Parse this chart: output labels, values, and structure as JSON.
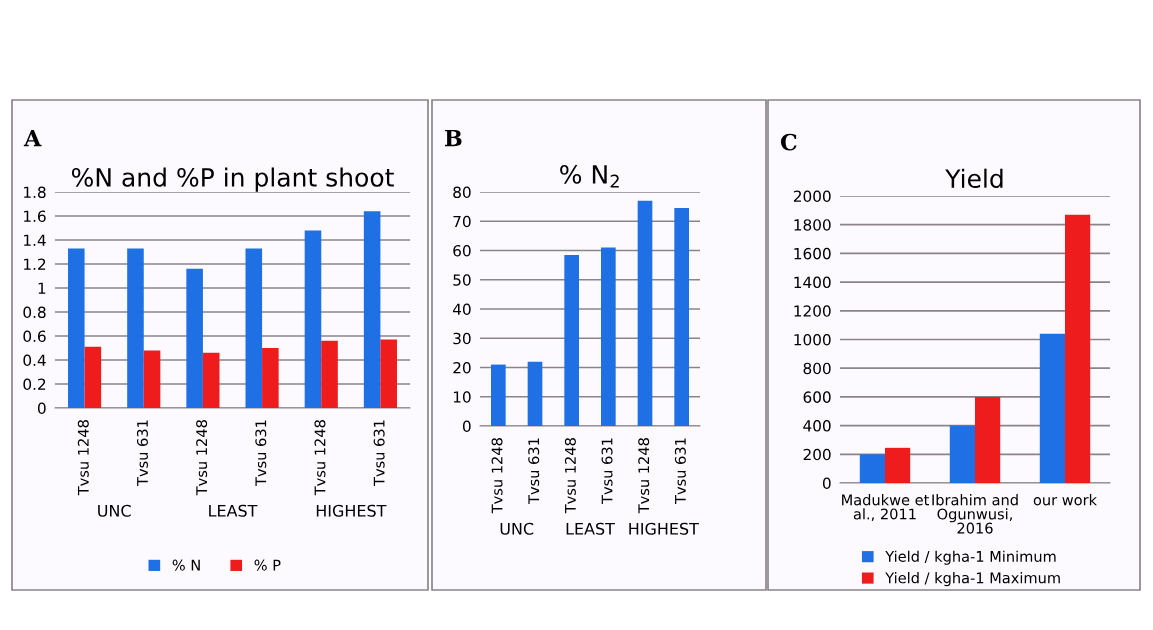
{
  "chart_data": [
    {
      "type": "bar",
      "title": "%N and %P in plant shoot",
      "categories": [
        "Tvsu 1248",
        "Tvsu 631",
        "Tvsu 1248",
        "Tvsu 631",
        "Tvsu 1248",
        "Tvsu 631"
      ],
      "series": [
        {
          "name": "% N",
          "color": "#1f6fe5",
          "values": [
            1.33,
            1.33,
            1.16,
            1.33,
            1.48,
            1.64
          ]
        },
        {
          "name": "% P",
          "color": "#ee1c1c",
          "values": [
            0.51,
            0.48,
            0.46,
            0.5,
            0.56,
            0.57
          ]
        }
      ],
      "ylim": [
        0,
        1.8
      ],
      "yticks": [
        0,
        0.2,
        0.4,
        0.6,
        0.8,
        1,
        1.2,
        1.4,
        1.6,
        1.8
      ],
      "grid": "y",
      "legend": "bottom",
      "annotations": [
        "A",
        "UNC",
        "LEAST",
        "HIGHEST"
      ]
    },
    {
      "type": "bar",
      "title": "% N$_{2}$",
      "categories": [
        "Tvsu 1248",
        "Tvsu 631",
        "Tvsu 1248",
        "Tvsu 631",
        "Tvsu 1248",
        "Tvsu 631"
      ],
      "series": [
        {
          "color": "#1f6fe5",
          "values": [
            21,
            22,
            58.5,
            61,
            77,
            74.5
          ]
        }
      ],
      "ylim": [
        0,
        80
      ],
      "yticks": [
        0,
        10,
        20,
        30,
        40,
        50,
        60,
        70,
        80
      ],
      "grid": "y",
      "annotations": [
        "B",
        "UNC",
        "LEAST",
        "HIGHEST"
      ]
    },
    {
      "type": "bar",
      "title": "Yield",
      "categories": [
        "Madukwe et\nal., 2011",
        "Ibrahim and\nOgunwusi,\n2016",
        "our work"
      ],
      "series": [
        {
          "name": "Yield / kgha-1 Minimum",
          "color": "#1f6fe5",
          "values": [
            200,
            400,
            1040
          ]
        },
        {
          "name": "Yield / kgha-1 Maximum",
          "color": "#ee1c1c",
          "values": [
            245,
            600,
            1870
          ]
        }
      ],
      "ylim": [
        0,
        2000
      ],
      "yticks": [
        0,
        200,
        400,
        600,
        800,
        1000,
        1200,
        1400,
        1600,
        1800,
        2000
      ],
      "grid": "y",
      "legend": "bottom",
      "annotations": [
        "C"
      ]
    }
  ]
}
